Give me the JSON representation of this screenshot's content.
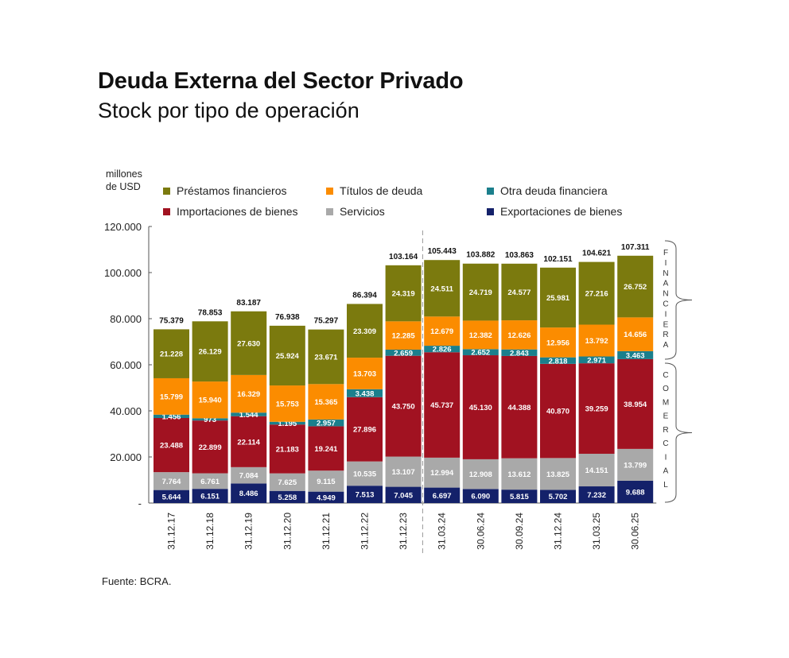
{
  "header": {
    "title": "Deuda Externa del Sector Privado",
    "subtitle": "Stock por tipo de operación"
  },
  "footer": {
    "source": "Fuente: BCRA."
  },
  "chart_data": {
    "type": "bar",
    "stacked": true,
    "title": "Deuda Externa del Sector Privado",
    "subtitle": "Stock por tipo de operación",
    "ylabel": "millones de USD",
    "ylabel_lines": [
      "millones",
      "de USD"
    ],
    "xlabel": "",
    "ylim": [
      0,
      120000
    ],
    "yticks": [
      0,
      20000,
      40000,
      60000,
      80000,
      100000,
      120000
    ],
    "ytick_labels": [
      "-",
      "20.000",
      "40.000",
      "60.000",
      "80.000",
      "100.000",
      "120.000"
    ],
    "grid": false,
    "legend_position": "top",
    "categories": [
      "31.12.17",
      "31.12.18",
      "31.12.19",
      "31.12.20",
      "31.12.21",
      "31.12.22",
      "31.12.23",
      "31.03.24",
      "30.06.24",
      "30.09.24",
      "31.12.24",
      "31.03.25",
      "30.06.25"
    ],
    "divider_after_index": 6,
    "legend": [
      {
        "name": "Préstamos financieros",
        "color": "#7b7a0e"
      },
      {
        "name": "Títulos de deuda",
        "color": "#fb8c00"
      },
      {
        "name": "Otra deuda financiera",
        "color": "#1b7f8c"
      },
      {
        "name": "Importaciones de bienes",
        "color": "#a11221"
      },
      {
        "name": "Servicios",
        "color": "#a9a9a9"
      },
      {
        "name": "Exportaciones de bienes",
        "color": "#14216a"
      }
    ],
    "series": [
      {
        "name": "Exportaciones de bienes",
        "color": "#14216a",
        "values": [
          5644,
          6151,
          8486,
          5258,
          4949,
          7513,
          7045,
          6697,
          6090,
          5815,
          5702,
          7232,
          9688
        ],
        "labels": [
          "5.644",
          "6.151",
          "8.486",
          "5.258",
          "4.949",
          "7.513",
          "7.045",
          "6.697",
          "6.090",
          "5.815",
          "5.702",
          "7.232",
          "9.688"
        ]
      },
      {
        "name": "Servicios",
        "color": "#a9a9a9",
        "values": [
          7764,
          6761,
          7084,
          7625,
          9115,
          10535,
          13107,
          12994,
          12908,
          13612,
          13825,
          14151,
          13799
        ],
        "labels": [
          "7.764",
          "6.761",
          "7.084",
          "7.625",
          "9.115",
          "10.535",
          "13.107",
          "12.994",
          "12.908",
          "13.612",
          "13.825",
          "14.151",
          "13.799"
        ]
      },
      {
        "name": "Importaciones de bienes",
        "color": "#a11221",
        "values": [
          23488,
          22899,
          22114,
          21183,
          19241,
          27896,
          43750,
          45737,
          45130,
          44388,
          40870,
          39259,
          38954
        ],
        "labels": [
          "23.488",
          "22.899",
          "22.114",
          "21.183",
          "19.241",
          "27.896",
          "43.750",
          "45.737",
          "45.130",
          "44.388",
          "40.870",
          "39.259",
          "38.954"
        ]
      },
      {
        "name": "Otra deuda financiera",
        "color": "#1b7f8c",
        "values": [
          1456,
          973,
          1544,
          1195,
          2957,
          3438,
          2659,
          2826,
          2652,
          2843,
          2818,
          2971,
          3463
        ],
        "labels": [
          "1.456",
          "973",
          "1.544",
          "1.195",
          "2.957",
          "3.438",
          "2.659",
          "2.826",
          "2.652",
          "2.843",
          "2.818",
          "2.971",
          "3.463"
        ]
      },
      {
        "name": "Títulos de deuda",
        "color": "#fb8c00",
        "values": [
          15799,
          15940,
          16329,
          15753,
          15365,
          13703,
          12285,
          12679,
          12382,
          12626,
          12956,
          13792,
          14656
        ],
        "labels": [
          "15.799",
          "15.940",
          "16.329",
          "15.753",
          "15.365",
          "13.703",
          "12.285",
          "12.679",
          "12.382",
          "12.626",
          "12.956",
          "13.792",
          "14.656"
        ]
      },
      {
        "name": "Préstamos financieros",
        "color": "#7b7a0e",
        "values": [
          21228,
          26129,
          27630,
          25924,
          23671,
          23309,
          24319,
          24511,
          24719,
          24577,
          25981,
          27216,
          26752
        ],
        "labels": [
          "21.228",
          "26.129",
          "27.630",
          "25.924",
          "23.671",
          "23.309",
          "24.319",
          "24.511",
          "24.719",
          "24.577",
          "25.981",
          "27.216",
          "26.752"
        ]
      }
    ],
    "totals": [
      75379,
      78853,
      83187,
      76938,
      75297,
      86394,
      103164,
      105443,
      103882,
      103863,
      102151,
      104621,
      107311
    ],
    "total_labels": [
      "75.379",
      "78.853",
      "83.187",
      "76.938",
      "75.297",
      "86.394",
      "103.164",
      "105.443",
      "103.882",
      "103.863",
      "102.151",
      "104.621",
      "107.311"
    ],
    "brackets": [
      {
        "label": "FINANCIERA",
        "covers": [
          "Préstamos financieros",
          "Títulos de deuda",
          "Otra deuda financiera"
        ]
      },
      {
        "label": "COMERCIAL",
        "covers": [
          "Importaciones de bienes",
          "Servicios",
          "Exportaciones de bienes"
        ]
      }
    ]
  }
}
